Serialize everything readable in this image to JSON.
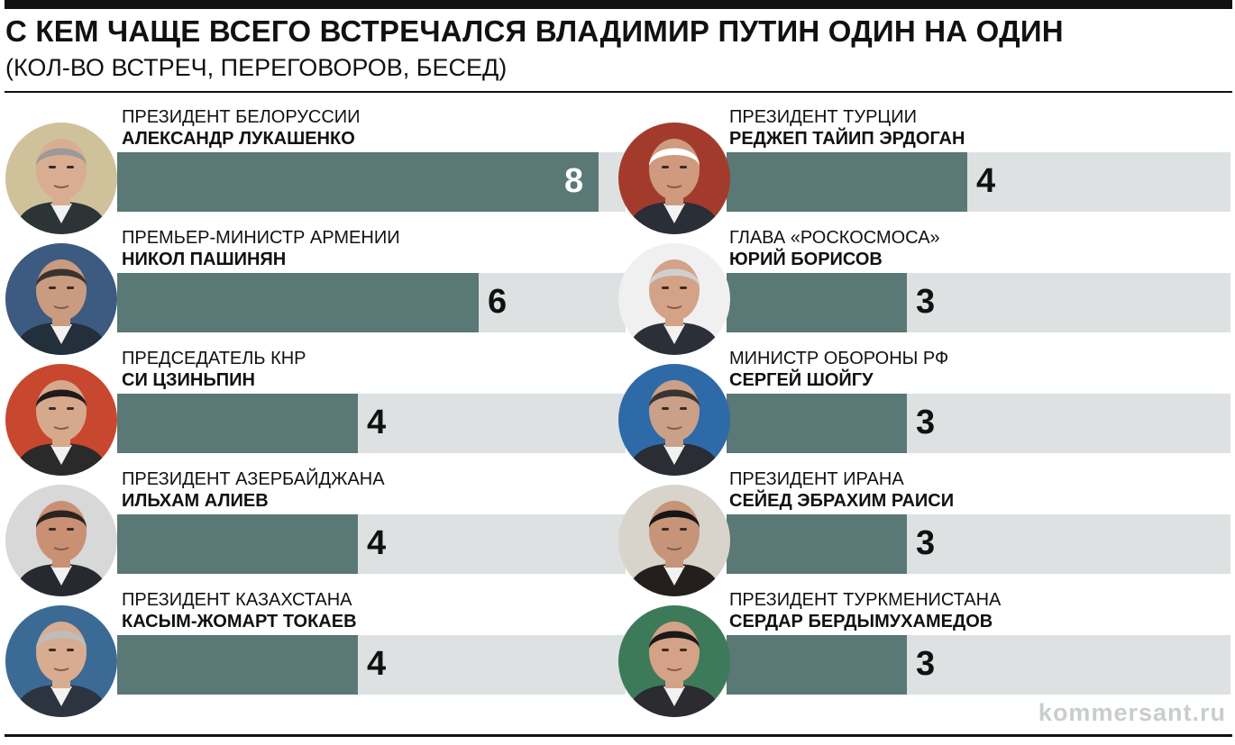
{
  "header": {
    "title": "С КЕМ ЧАЩЕ ВСЕГО ВСТРЕЧАЛСЯ ВЛАДИМИР ПУТИН ОДИН НА ОДИН",
    "subtitle": "(КОЛ-ВО ВСТРЕЧ, ПЕРЕГОВОРОВ, БЕСЕД)"
  },
  "footer": {
    "source": "kommersant.ru"
  },
  "colors": {
    "fill": "#5a7875",
    "track": "#dde1e1"
  },
  "chart_data": {
    "type": "bar",
    "title": "С КЕМ ЧАЩЕ ВСЕГО ВСТРЕЧАЛСЯ ВЛАДИМИР ПУТИН ОДИН НА ОДИН",
    "subtitle": "(КОЛ-ВО ВСТРЕЧ, ПЕРЕГОВОРОВ, БЕСЕД)",
    "xlim": [
      0,
      10
    ],
    "columns": [
      [
        {
          "role": "ПРЕЗИДЕНТ БЕЛОРУССИИ",
          "name": "АЛЕКСАНДР ЛУКАШЕНКО",
          "value": 8,
          "label": "8"
        },
        {
          "role": "ПРЕМЬЕР-МИНИСТР АРМЕНИИ",
          "name": "НИКОЛ ПАШИНЯН",
          "value": 6,
          "label": "6"
        },
        {
          "role": "ПРЕДСЕДАТЕЛЬ КНР",
          "name": "СИ ЦЗИНЬПИН",
          "value": 4,
          "label": "4"
        },
        {
          "role": "ПРЕЗИДЕНТ АЗЕРБАЙДЖАНА",
          "name": "ИЛЬХАМ АЛИЕВ",
          "value": 4,
          "label": "4"
        },
        {
          "role": "ПРЕЗИДЕНТ КАЗАХСТАНА",
          "name": "КАСЫМ-ЖОМАРТ ТОКАЕВ",
          "value": 4,
          "label": "4"
        }
      ],
      [
        {
          "role": "ПРЕЗИДЕНТ ТУРЦИИ",
          "name": "РЕДЖЕП ТАЙИП ЭРДОГАН",
          "value": 4,
          "label": "4"
        },
        {
          "role": "ГЛАВА «РОСКОСМОСА»",
          "name": "ЮРИЙ БОРИСОВ",
          "value": 3,
          "label": "3"
        },
        {
          "role": "МИНИСТР ОБОРОНЫ РФ",
          "name": "СЕРГЕЙ ШОЙГУ",
          "value": 3,
          "label": "3"
        },
        {
          "role": "ПРЕЗИДЕНТ ИРАНА",
          "name": "СЕЙЕД ЭБРАХИМ РАИСИ",
          "value": 3,
          "label": "3"
        },
        {
          "role": "ПРЕЗИДЕНТ ТУРКМЕНИСТАНА",
          "name": "СЕРДАР БЕРДЫМУХАМЕДОВ",
          "value": 3,
          "label": "3"
        }
      ]
    ]
  }
}
